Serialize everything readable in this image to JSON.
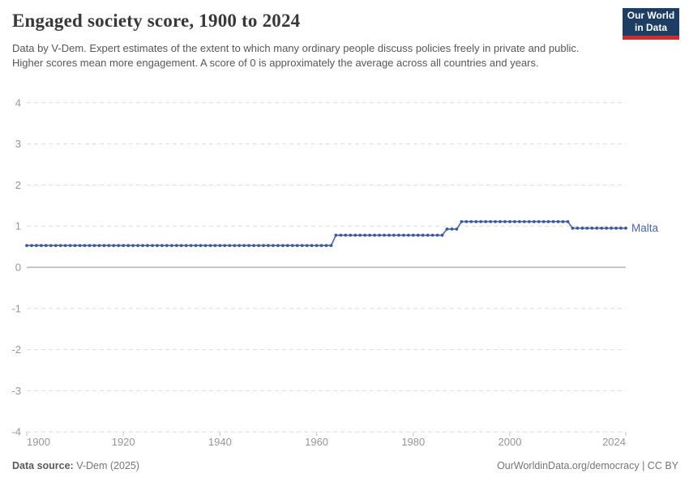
{
  "header": {
    "title": "Engaged society score, 1900 to 2024",
    "subtitle": "Data by V-Dem. Expert estimates of the extent to which many ordinary people discuss policies freely in private and public. Higher scores mean more engagement. A score of 0 is approximately the average across all countries and years.",
    "logo": {
      "line1": "Our World",
      "line2": "in Data",
      "bg_color": "#1d3d63",
      "accent_color": "#cb2d30"
    }
  },
  "footer": {
    "source_label": "Data source:",
    "source_value": "V-Dem (2025)",
    "right_text": "OurWorldinData.org/democracy | CC BY"
  },
  "chart_data": {
    "type": "line",
    "title": "Engaged society score, 1900 to 2024",
    "entity_label": "Malta",
    "xlabel": "",
    "ylabel": "",
    "x": {
      "min": 1900,
      "max": 2024,
      "ticks": [
        1900,
        1920,
        1940,
        1960,
        1980,
        2000,
        2024
      ]
    },
    "y": {
      "min": -4,
      "max": 4,
      "ticks": [
        4,
        3,
        2,
        1,
        0,
        -1,
        -2,
        -3,
        -4
      ]
    },
    "grid": true,
    "legend": "end-of-line-label",
    "series": [
      {
        "name": "Malta",
        "line_color": "#4c65a8",
        "marker_color": "#3d579d",
        "segments": [
          {
            "from": 1900,
            "to": 1963,
            "value": 0.53
          },
          {
            "from": 1964,
            "to": 1986,
            "value": 0.78
          },
          {
            "from": 1987,
            "to": 1989,
            "value": 0.93
          },
          {
            "from": 1990,
            "to": 2012,
            "value": 1.11
          },
          {
            "from": 2013,
            "to": 2024,
            "value": 0.95
          }
        ]
      }
    ],
    "colors": {
      "gridline": "#dcdcdc",
      "zero_line": "#a3a3a3",
      "tick_label": "#969696",
      "axis_tick": "#c2c2c2"
    }
  }
}
